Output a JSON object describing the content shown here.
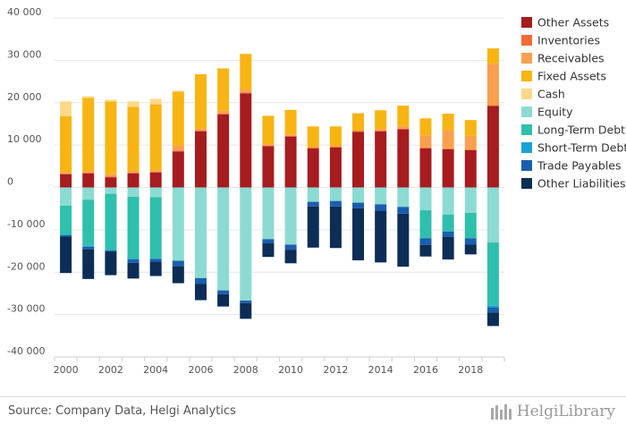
{
  "chart_data": {
    "type": "bar",
    "stacked": true,
    "title": "",
    "xlabel": "",
    "ylabel": "",
    "categories": [
      "2000",
      "2001",
      "2002",
      "2003",
      "2004",
      "2005",
      "2006",
      "2007",
      "2008",
      "2009",
      "2010",
      "2011",
      "2012",
      "2013",
      "2014",
      "2015",
      "2016",
      "2017",
      "2018",
      "2019"
    ],
    "x_tick_labels": [
      "2000",
      "2002",
      "2004",
      "2006",
      "2008",
      "2010",
      "2012",
      "2014",
      "2016",
      "2018"
    ],
    "ylim": [
      -40000,
      40000
    ],
    "y_ticks": [
      40000,
      30000,
      20000,
      10000,
      0,
      -10000,
      -20000,
      -30000,
      -40000
    ],
    "y_tick_labels": [
      "40 000",
      "30 000",
      "20 000",
      "10 000",
      "0",
      "-10 000",
      "-20 000",
      "-30 000",
      "-40 000"
    ],
    "grid": "horizontal",
    "legend_position": "right",
    "series": [
      {
        "name": "Other Assets",
        "color": "#a61c1f",
        "side": "positive",
        "values": [
          3100,
          3300,
          2400,
          3300,
          3500,
          8500,
          13200,
          17200,
          22200,
          9700,
          12000,
          9200,
          9400,
          13100,
          13200,
          13700,
          9200,
          9000,
          8800,
          19200
        ]
      },
      {
        "name": "Inventories",
        "color": "#f26b38",
        "side": "positive",
        "values": [
          200,
          200,
          200,
          200,
          200,
          200,
          200,
          200,
          200,
          200,
          200,
          200,
          200,
          200,
          200,
          200,
          200,
          200,
          200,
          200
        ]
      },
      {
        "name": "Receivables",
        "color": "#f9a04e",
        "side": "positive",
        "values": [
          300,
          400,
          500,
          400,
          400,
          1200,
          500,
          700,
          700,
          300,
          300,
          200,
          200,
          200,
          400,
          600,
          2900,
          4300,
          3200,
          9800
        ]
      },
      {
        "name": "Fixed Assets",
        "color": "#f8b412",
        "side": "positive",
        "values": [
          13200,
          17200,
          17200,
          15100,
          15500,
          12700,
          12800,
          10000,
          8400,
          6700,
          5800,
          4800,
          4600,
          4000,
          4400,
          4800,
          4000,
          3900,
          3700,
          3600
        ]
      },
      {
        "name": "Cash",
        "color": "#fcd889",
        "side": "positive",
        "values": [
          3500,
          400,
          400,
          1300,
          1300,
          200,
          0,
          0,
          0,
          0,
          0,
          0,
          0,
          0,
          0,
          0,
          0,
          0,
          0,
          0
        ]
      },
      {
        "name": "Equity",
        "color": "#8cdbd2",
        "side": "negative",
        "values": [
          -4300,
          -2900,
          -1500,
          -2200,
          -2300,
          -17300,
          -21400,
          -24300,
          -26700,
          -12200,
          -13500,
          -3400,
          -3200,
          -3600,
          -4000,
          -4600,
          -5400,
          -6400,
          -6000,
          -13000
        ]
      },
      {
        "name": "Long-Term Debt",
        "color": "#2fbfad",
        "side": "negative",
        "values": [
          -6800,
          -10900,
          -13200,
          -14600,
          -14400,
          0,
          0,
          0,
          0,
          0,
          0,
          0,
          0,
          0,
          0,
          0,
          -6600,
          -4000,
          -6000,
          -14900
        ]
      },
      {
        "name": "Short-Term Debt",
        "color": "#1da2d6",
        "side": "negative",
        "values": [
          -200,
          -200,
          -200,
          -200,
          -200,
          0,
          0,
          0,
          0,
          0,
          0,
          0,
          0,
          0,
          0,
          0,
          0,
          0,
          0,
          -400
        ]
      },
      {
        "name": "Trade Payables",
        "color": "#1b5eae",
        "side": "negative",
        "values": [
          -300,
          -600,
          -200,
          -800,
          -600,
          -1300,
          -1400,
          -900,
          -600,
          -1000,
          -1200,
          -1100,
          -1300,
          -1300,
          -1500,
          -1600,
          -1600,
          -1300,
          -1500,
          -1200
        ]
      },
      {
        "name": "Other Liabilities",
        "color": "#0c2d55",
        "side": "negative",
        "values": [
          -8600,
          -7000,
          -5600,
          -3700,
          -3400,
          -4000,
          -3800,
          -2900,
          -3700,
          -3200,
          -3200,
          -9700,
          -9800,
          -12300,
          -12200,
          -12500,
          -2700,
          -5300,
          -2300,
          -3200
        ]
      }
    ]
  },
  "footer": {
    "source": "Source: Company Data, Helgi Analytics",
    "brand": "HelgiLibrary"
  }
}
